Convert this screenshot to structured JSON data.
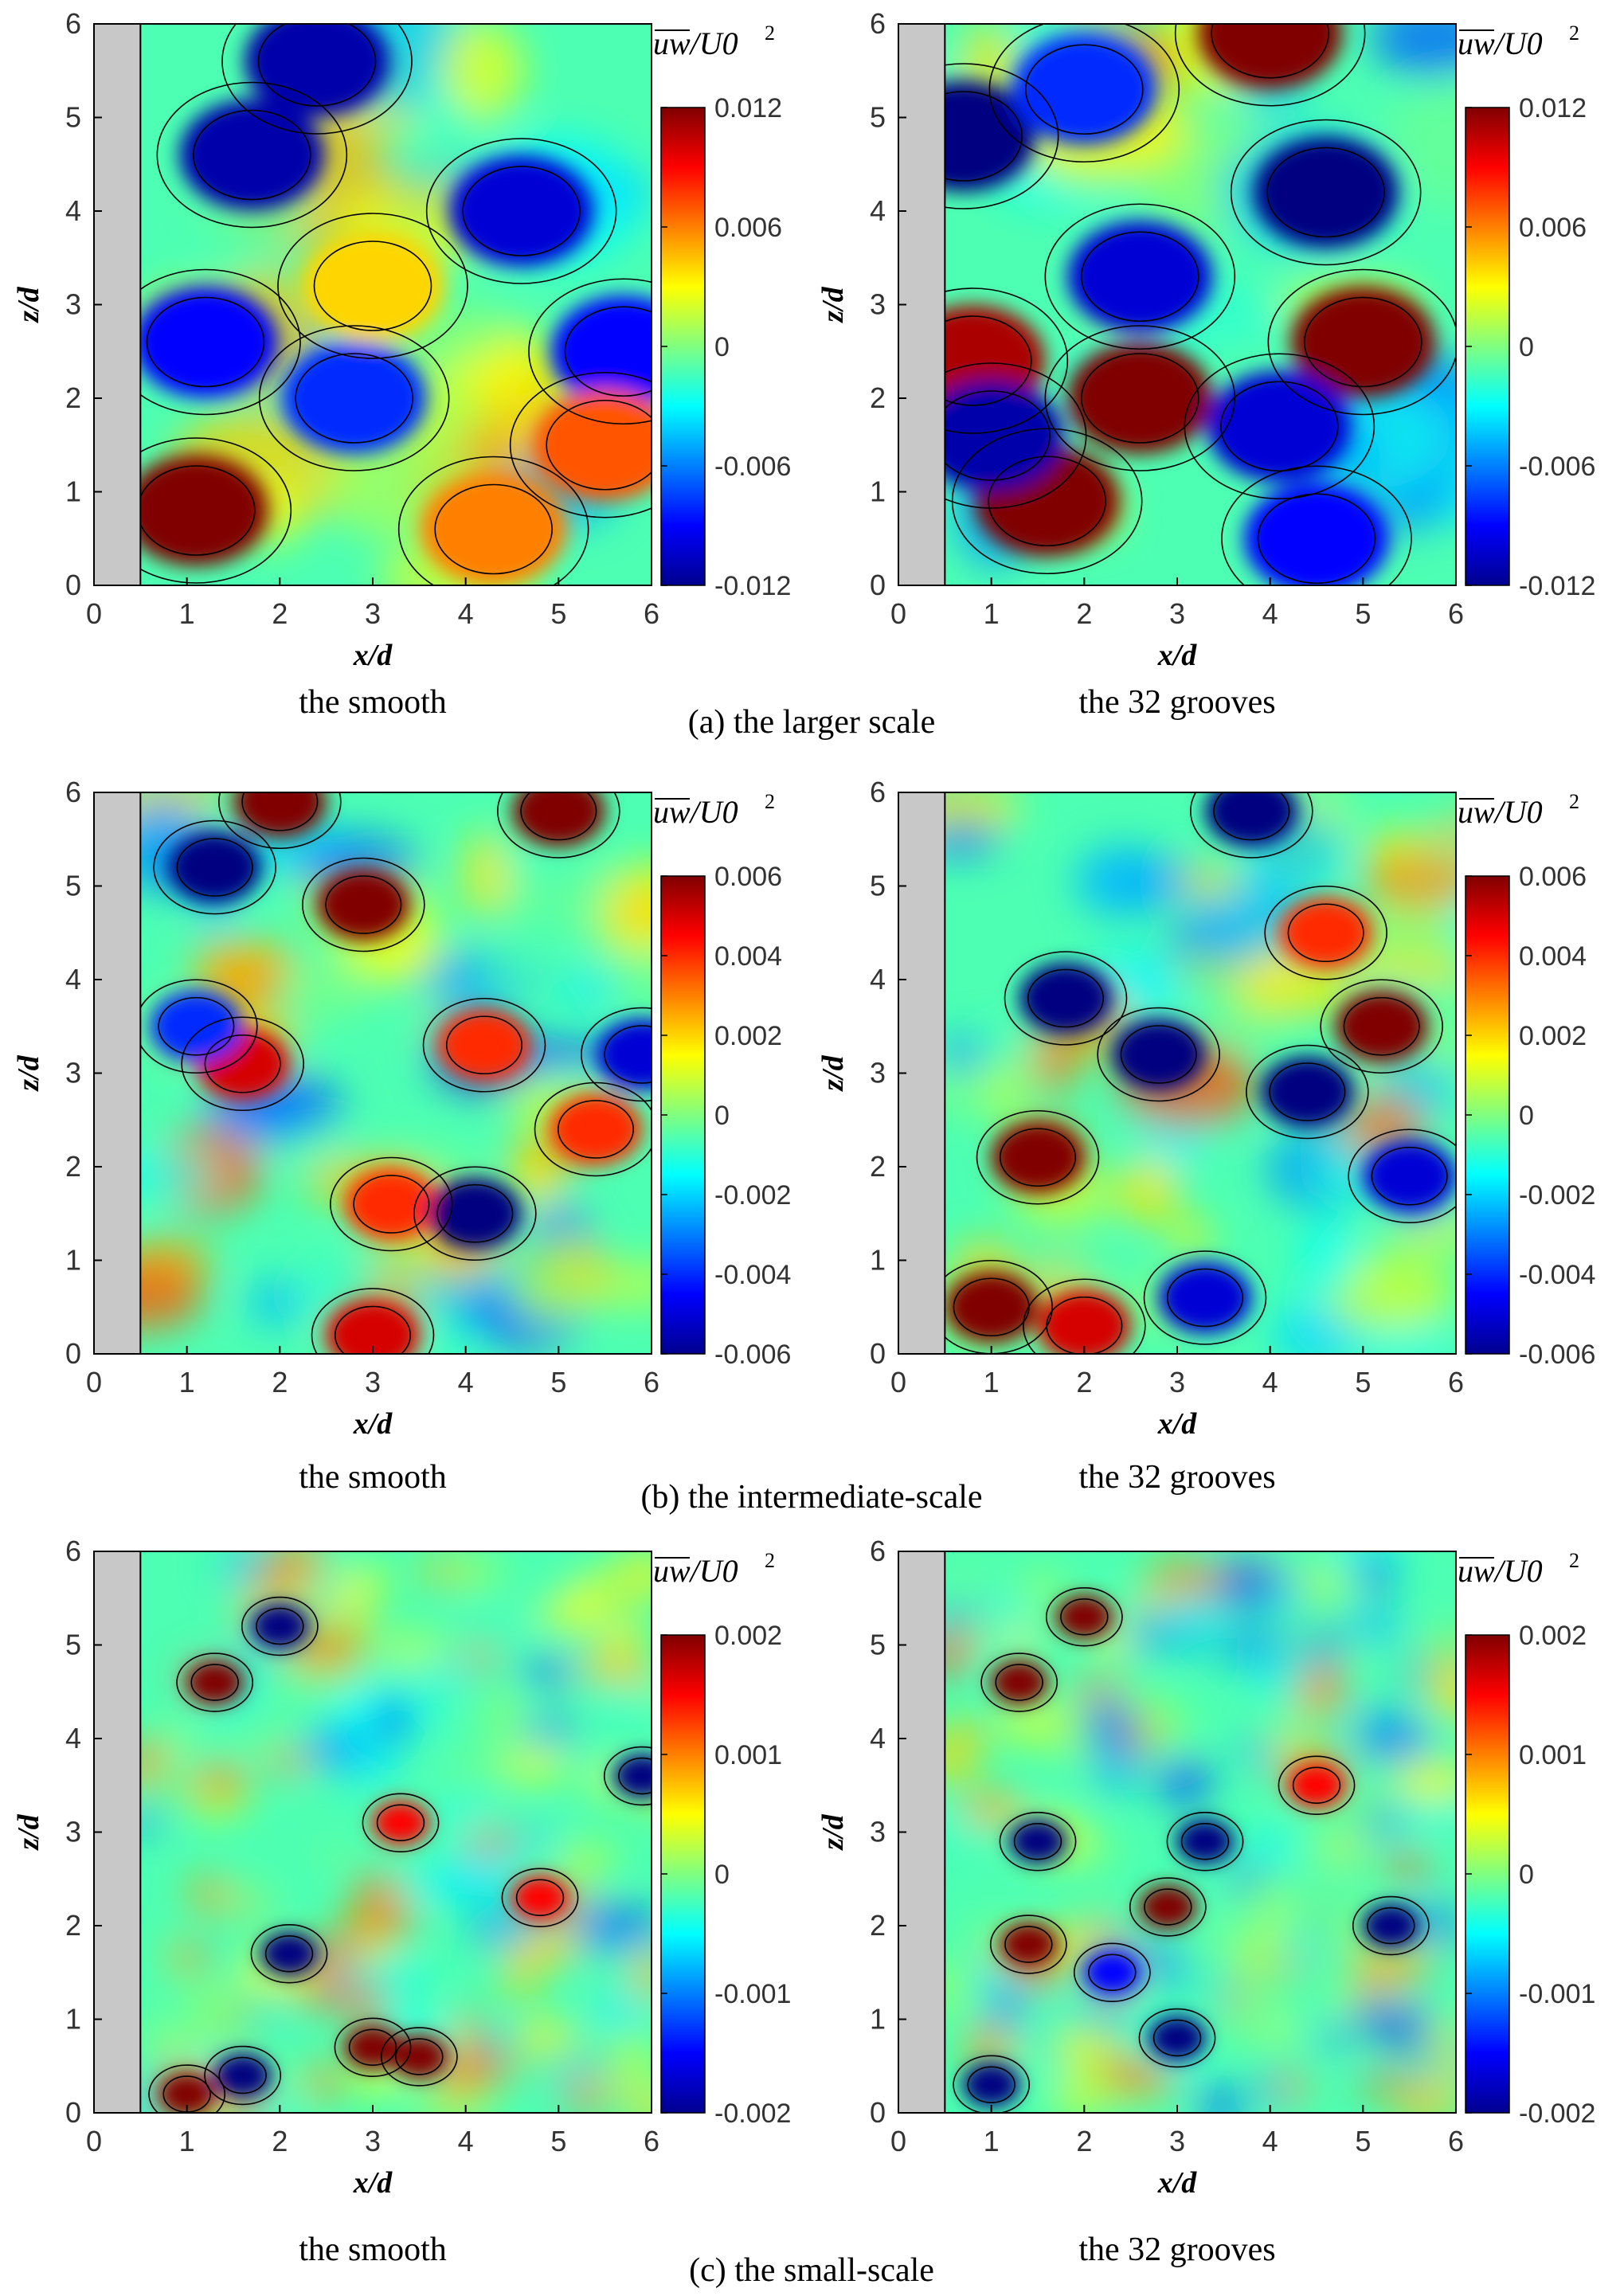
{
  "figure": {
    "rows": [
      {
        "caption": "(a) the larger scale",
        "panels": [
          {
            "subtitle": "the smooth",
            "xlabel": "x/d",
            "ylabel": "z/d",
            "colorbar_label": "uw/U0^2",
            "colorbar_ticks": [
              "0.012",
              "0.006",
              "0",
              "-0.006",
              "-0.012"
            ]
          },
          {
            "subtitle": "the 32 grooves",
            "xlabel": "x/d",
            "ylabel": "z/d",
            "colorbar_label": "uw/U0^2",
            "colorbar_ticks": [
              "0.012",
              "0.006",
              "0",
              "-0.006",
              "-0.012"
            ]
          }
        ]
      },
      {
        "caption": "(b) the intermediate-scale",
        "panels": [
          {
            "subtitle": "the smooth",
            "xlabel": "x/d",
            "ylabel": "z/d",
            "colorbar_label": "uw/U0^2",
            "colorbar_ticks": [
              "0.006",
              "0.004",
              "0.002",
              "0",
              "-0.002",
              "-0.004",
              "-0.006"
            ]
          },
          {
            "subtitle": "the 32 grooves",
            "xlabel": "x/d",
            "ylabel": "z/d",
            "colorbar_label": "uw/U0^2",
            "colorbar_ticks": [
              "0.006",
              "0.004",
              "0.002",
              "0",
              "-0.002",
              "-0.004",
              "-0.006"
            ]
          }
        ]
      },
      {
        "caption": "(c) the small-scale",
        "panels": [
          {
            "subtitle": "the smooth",
            "xlabel": "x/d",
            "ylabel": "z/d",
            "colorbar_label": "uw/U0^2",
            "colorbar_ticks": [
              "0.002",
              "0.001",
              "0",
              "-0.001",
              "-0.002"
            ]
          },
          {
            "subtitle": "the 32 grooves",
            "xlabel": "x/d",
            "ylabel": "z/d",
            "colorbar_label": "uw/U0^2",
            "colorbar_ticks": [
              "0.002",
              "0.001",
              "0",
              "-0.001",
              "-0.002"
            ]
          }
        ]
      }
    ]
  },
  "chart_data": [
    {
      "type": "heatmap",
      "panel": "(a) the smooth",
      "xlabel": "x/d",
      "ylabel": "z/d",
      "xlim": [
        0,
        6
      ],
      "ylim": [
        0,
        6
      ],
      "x_ticks": [
        "0",
        "1",
        "2",
        "3",
        "4",
        "5",
        "6"
      ],
      "y_ticks": [
        "0",
        "1",
        "2",
        "3",
        "4",
        "5",
        "6"
      ],
      "colorbar_label": "uw/U0^2",
      "clim": [
        -0.012,
        0.012
      ],
      "obstacle_x": [
        0,
        0.5
      ],
      "hotspots": [
        {
          "x": 1.1,
          "z": 0.8,
          "v": 0.012
        },
        {
          "x": 2.4,
          "z": 5.6,
          "v": -0.011
        },
        {
          "x": 1.7,
          "z": 4.6,
          "v": -0.011
        },
        {
          "x": 4.6,
          "z": 4.0,
          "v": -0.01
        },
        {
          "x": 1.2,
          "z": 2.6,
          "v": -0.009
        },
        {
          "x": 5.7,
          "z": 2.5,
          "v": -0.009
        },
        {
          "x": 2.8,
          "z": 2.0,
          "v": -0.008
        },
        {
          "x": 5.5,
          "z": 1.5,
          "v": 0.007
        },
        {
          "x": 4.3,
          "z": 0.6,
          "v": 0.006
        },
        {
          "x": 3.0,
          "z": 3.2,
          "v": 0.004
        }
      ]
    },
    {
      "type": "heatmap",
      "panel": "(a) the 32 grooves",
      "xlabel": "x/d",
      "ylabel": "z/d",
      "xlim": [
        0,
        6
      ],
      "ylim": [
        0,
        6
      ],
      "x_ticks": [
        "0",
        "1",
        "2",
        "3",
        "4",
        "5",
        "6"
      ],
      "y_ticks": [
        "0",
        "1",
        "2",
        "3",
        "4",
        "5",
        "6"
      ],
      "colorbar_label": "uw/U0^2",
      "clim": [
        -0.012,
        0.012
      ],
      "obstacle_x": [
        0,
        0.5
      ],
      "hotspots": [
        {
          "x": 1.6,
          "z": 0.9,
          "v": 0.012
        },
        {
          "x": 2.6,
          "z": 2.0,
          "v": 0.012
        },
        {
          "x": 5.0,
          "z": 2.6,
          "v": 0.012
        },
        {
          "x": 4.0,
          "z": 5.9,
          "v": 0.012
        },
        {
          "x": 0.8,
          "z": 2.4,
          "v": 0.011
        },
        {
          "x": 4.6,
          "z": 4.2,
          "v": -0.012
        },
        {
          "x": 0.7,
          "z": 4.8,
          "v": -0.012
        },
        {
          "x": 1.0,
          "z": 1.6,
          "v": -0.011
        },
        {
          "x": 4.1,
          "z": 1.7,
          "v": -0.01
        },
        {
          "x": 2.6,
          "z": 3.3,
          "v": -0.01
        },
        {
          "x": 4.5,
          "z": 0.5,
          "v": -0.009
        },
        {
          "x": 2.0,
          "z": 5.3,
          "v": -0.008
        }
      ]
    },
    {
      "type": "heatmap",
      "panel": "(b) the smooth",
      "xlabel": "x/d",
      "ylabel": "z/d",
      "xlim": [
        0,
        6
      ],
      "ylim": [
        0,
        6
      ],
      "x_ticks": [
        "0",
        "1",
        "2",
        "3",
        "4",
        "5",
        "6"
      ],
      "y_ticks": [
        "0",
        "1",
        "2",
        "3",
        "4",
        "5",
        "6"
      ],
      "colorbar_label": "uw/U0^2",
      "clim": [
        -0.006,
        0.006
      ],
      "obstacle_x": [
        0,
        0.5
      ],
      "hotspots": [
        {
          "x": 2.9,
          "z": 4.8,
          "v": 0.006
        },
        {
          "x": 5.0,
          "z": 5.8,
          "v": 0.006
        },
        {
          "x": 1.6,
          "z": 3.1,
          "v": 0.005
        },
        {
          "x": 2.0,
          "z": 5.9,
          "v": 0.006
        },
        {
          "x": 4.2,
          "z": 3.3,
          "v": 0.004
        },
        {
          "x": 5.4,
          "z": 2.4,
          "v": 0.004
        },
        {
          "x": 3.2,
          "z": 1.6,
          "v": 0.004
        },
        {
          "x": 1.3,
          "z": 5.2,
          "v": -0.006
        },
        {
          "x": 4.1,
          "z": 1.5,
          "v": -0.006
        },
        {
          "x": 1.1,
          "z": 3.5,
          "v": -0.004
        },
        {
          "x": 5.9,
          "z": 3.2,
          "v": -0.005
        },
        {
          "x": 3.0,
          "z": 0.2,
          "v": 0.005
        }
      ]
    },
    {
      "type": "heatmap",
      "panel": "(b) the 32 grooves",
      "xlabel": "x/d",
      "ylabel": "z/d",
      "xlim": [
        0,
        6
      ],
      "ylim": [
        0,
        6
      ],
      "x_ticks": [
        "0",
        "1",
        "2",
        "3",
        "4",
        "5",
        "6"
      ],
      "y_ticks": [
        "0",
        "1",
        "2",
        "3",
        "4",
        "5",
        "6"
      ],
      "colorbar_label": "uw/U0^2",
      "clim": [
        -0.006,
        0.006
      ],
      "obstacle_x": [
        0,
        0.5
      ],
      "hotspots": [
        {
          "x": 1.0,
          "z": 0.5,
          "v": 0.006
        },
        {
          "x": 1.5,
          "z": 2.1,
          "v": 0.006
        },
        {
          "x": 5.2,
          "z": 3.5,
          "v": 0.006
        },
        {
          "x": 4.6,
          "z": 4.5,
          "v": 0.004
        },
        {
          "x": 2.0,
          "z": 0.3,
          "v": 0.005
        },
        {
          "x": 2.8,
          "z": 3.2,
          "v": -0.006
        },
        {
          "x": 4.4,
          "z": 2.8,
          "v": -0.006
        },
        {
          "x": 1.8,
          "z": 3.8,
          "v": -0.006
        },
        {
          "x": 3.8,
          "z": 5.8,
          "v": -0.006
        },
        {
          "x": 5.5,
          "z": 1.9,
          "v": -0.005
        },
        {
          "x": 3.3,
          "z": 0.6,
          "v": -0.005
        }
      ]
    },
    {
      "type": "heatmap",
      "panel": "(c) the smooth",
      "xlabel": "x/d",
      "ylabel": "z/d",
      "xlim": [
        0,
        6
      ],
      "ylim": [
        0,
        6
      ],
      "x_ticks": [
        "0",
        "1",
        "2",
        "3",
        "4",
        "5",
        "6"
      ],
      "y_ticks": [
        "0",
        "1",
        "2",
        "3",
        "4",
        "5",
        "6"
      ],
      "colorbar_label": "uw/U0^2",
      "clim": [
        -0.002,
        0.002
      ],
      "obstacle_x": [
        0,
        0.5
      ],
      "hotspots": [
        {
          "x": 1.3,
          "z": 4.6,
          "v": 0.002
        },
        {
          "x": 3.0,
          "z": 0.7,
          "v": 0.002
        },
        {
          "x": 3.5,
          "z": 0.6,
          "v": 0.002
        },
        {
          "x": 1.0,
          "z": 0.2,
          "v": 0.002
        },
        {
          "x": 2.0,
          "z": 5.2,
          "v": -0.002
        },
        {
          "x": 1.6,
          "z": 0.4,
          "v": -0.002
        },
        {
          "x": 2.1,
          "z": 1.7,
          "v": -0.002
        },
        {
          "x": 5.9,
          "z": 3.6,
          "v": -0.002
        },
        {
          "x": 3.3,
          "z": 3.1,
          "v": 0.0015
        },
        {
          "x": 4.8,
          "z": 2.3,
          "v": 0.0015
        }
      ]
    },
    {
      "type": "heatmap",
      "panel": "(c) the 32 grooves",
      "xlabel": "x/d",
      "ylabel": "z/d",
      "xlim": [
        0,
        6
      ],
      "ylim": [
        0,
        6
      ],
      "x_ticks": [
        "0",
        "1",
        "2",
        "3",
        "4",
        "5",
        "6"
      ],
      "y_ticks": [
        "0",
        "1",
        "2",
        "3",
        "4",
        "5",
        "6"
      ],
      "colorbar_label": "uw/U0^2",
      "clim": [
        -0.002,
        0.002
      ],
      "obstacle_x": [
        0,
        0.5
      ],
      "hotspots": [
        {
          "x": 1.4,
          "z": 1.8,
          "v": 0.002
        },
        {
          "x": 1.3,
          "z": 4.6,
          "v": 0.002
        },
        {
          "x": 2.0,
          "z": 5.3,
          "v": 0.002
        },
        {
          "x": 4.5,
          "z": 3.5,
          "v": 0.0015
        },
        {
          "x": 2.9,
          "z": 2.2,
          "v": 0.002
        },
        {
          "x": 3.0,
          "z": 0.8,
          "v": -0.002
        },
        {
          "x": 1.0,
          "z": 0.3,
          "v": -0.002
        },
        {
          "x": 5.3,
          "z": 2.0,
          "v": -0.002
        },
        {
          "x": 1.5,
          "z": 2.9,
          "v": -0.002
        },
        {
          "x": 3.3,
          "z": 2.9,
          "v": -0.002
        },
        {
          "x": 2.3,
          "z": 1.5,
          "v": -0.0015
        }
      ]
    }
  ]
}
